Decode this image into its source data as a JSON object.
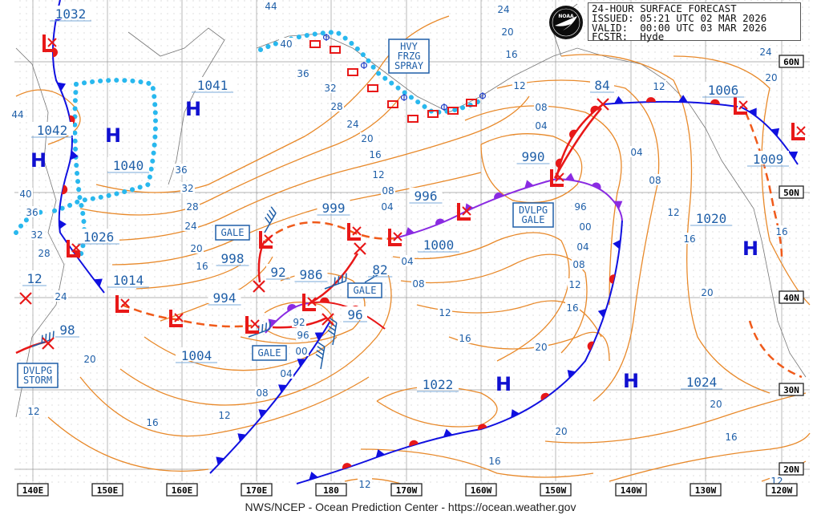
{
  "header": {
    "title": "24-HOUR SURFACE FORECAST",
    "issued": "ISSUED: 05:21 UTC 02 MAR 2026",
    "valid": "VALID:  00:00 UTC 03 MAR 2026",
    "forecaster": "FCSTR:  Hyde"
  },
  "logo": {
    "text": "NOAA",
    "icon": "noaa-logo-icon"
  },
  "footer": "NWS/NCEP - Ocean Prediction Center - https://ocean.weather.gov",
  "longitude_labels": [
    "140E",
    "150E",
    "160E",
    "170E",
    "180",
    "170W",
    "160W",
    "150W",
    "140W",
    "130W",
    "120W"
  ],
  "latitude_labels": [
    "60N",
    "50N",
    "40N",
    "30N",
    "20N"
  ],
  "pressure_center_labels": [
    "1032",
    "1041",
    "1042",
    "1040",
    "1026",
    "1014",
    "998",
    "994",
    "1004",
    "92",
    "986",
    "82",
    "96",
    "999",
    "996",
    "1000",
    "990",
    "84",
    "1006",
    "1009",
    "1020",
    "1022",
    "1024",
    "12",
    "98"
  ],
  "high_symbol": "H",
  "high_count": 6,
  "isobar_labels": [
    "44",
    "40",
    "36",
    "32",
    "28",
    "24",
    "20",
    "16",
    "12",
    "08",
    "04",
    "00",
    "96",
    "92",
    "16",
    "20",
    "24",
    "28",
    "32",
    "36",
    "40",
    "44",
    "36",
    "32",
    "28",
    "24",
    "20",
    "16",
    "12",
    "08",
    "04",
    "04",
    "08",
    "12",
    "16",
    "20",
    "20",
    "16",
    "12",
    "24",
    "20",
    "16",
    "12",
    "08",
    "04",
    "96",
    "00",
    "04",
    "08",
    "12",
    "16",
    "04",
    "08",
    "12",
    "16",
    "20",
    "20",
    "16",
    "12",
    "12",
    "20",
    "24",
    "16",
    "12"
  ],
  "warning_labels": [
    {
      "lines": [
        "GALE"
      ]
    },
    {
      "lines": [
        "GALE"
      ]
    },
    {
      "lines": [
        "GALE"
      ]
    },
    {
      "lines": [
        "HVY",
        "FRZG",
        "SPRAY"
      ]
    },
    {
      "lines": [
        "DVLPG",
        "GALE"
      ]
    },
    {
      "lines": [
        "DVLPG",
        "STORM"
      ]
    }
  ],
  "colors": {
    "isobar": "#e8892a",
    "label": "#1f5fa8",
    "cold_front": "#1010e0",
    "warm_front": "#e81818",
    "occluded_front": "#8a2be2",
    "trough": "#f05a1a",
    "ice_edge": "#29b8ee",
    "low_marker": "#e81818",
    "high_marker": "#1010d0",
    "coast": "#777777",
    "grid": "#9a9a9a"
  },
  "symbols": {
    "low": "low-center-icon",
    "forecast_position": "x-mark-icon",
    "wind_barb": "wind-barb-icon",
    "freezing_spray": "freezing-spray-icon"
  }
}
